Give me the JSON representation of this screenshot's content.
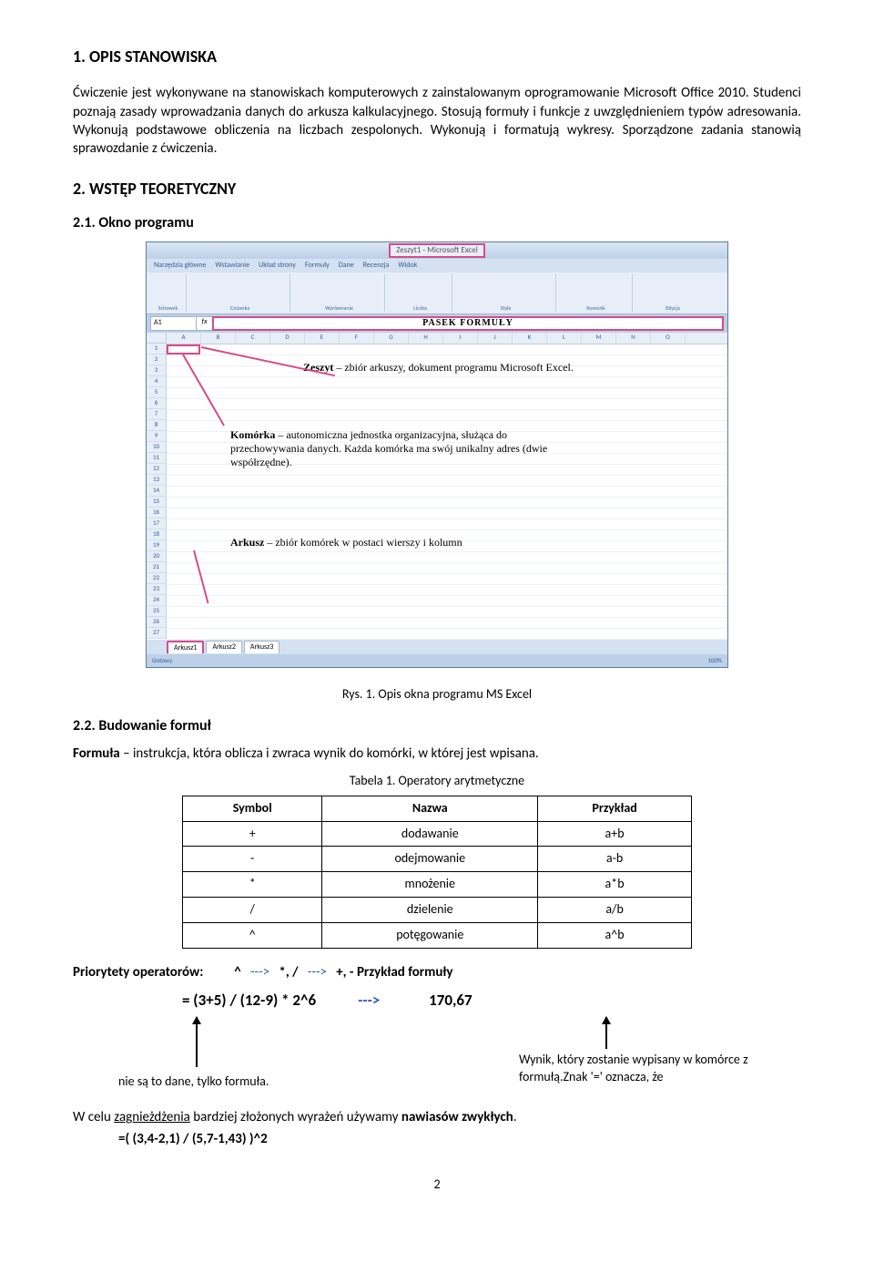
{
  "h1": "1. OPIS STANOWISKA",
  "p1": "Ćwiczenie jest wykonywane na stanowiskach komputerowych z zainstalowanym oprogramowanie Microsoft Office 2010. Studenci poznają zasady wprowadzania danych do arkusza kalkulacyjnego. Stosują formuły i funkcje z uwzględnieniem typów adresowania. Wykonują podstawowe obliczenia na liczbach zespolonych. Wykonują i formatują wykresy. Sporządzone zadania stanowią sprawozdanie z ćwiczenia.",
  "h2": "2. WSTĘP TEORETYCZNY",
  "h3a": "2.1. Okno programu",
  "excel": {
    "title": "Zeszyt1 - Microsoft Excel",
    "tabs": [
      "Narzędzia główne",
      "Wstawianie",
      "Układ strony",
      "Formuły",
      "Dane",
      "Recenzja",
      "Widok"
    ],
    "rib_groups": [
      "Schowek",
      "Czcionka",
      "Wyrównanie",
      "Liczba",
      "Style",
      "Komórki",
      "Edycja"
    ],
    "name_box": "A1",
    "formula_label": "PASEK  FORMUŁY",
    "cols": [
      "A",
      "B",
      "C",
      "D",
      "E",
      "F",
      "G",
      "H",
      "I",
      "J",
      "K",
      "L",
      "M",
      "N",
      "O"
    ],
    "rows": 27,
    "annot_zeszyt": "Zeszyt – zbiór arkuszy, dokument programu Microsoft Excel.",
    "annot_zeszyt_b": "Zeszyt",
    "annot_komorka_b": "Komórka",
    "annot_komorka": " – autonomiczna jednostka organizacyjna, służąca  do  przechowywania danych. Każda komórka ma swój unikalny adres (dwie współrzędne).",
    "annot_arkusz_b": "Arkusz",
    "annot_arkusz": " – zbiór komórek w postaci  wierszy i kolumn",
    "sheet_tabs": [
      "Arkusz1",
      "Arkusz2",
      "Arkusz3"
    ],
    "status_left": "Gotowy",
    "status_right": "100%"
  },
  "fig_caption": "Rys. 1. Opis okna programu MS Excel",
  "h3b": "2.2. Budowanie formuł",
  "p_formula": "Formuła – instrukcja, która oblicza i zwraca wynik do komórki, w której jest wpisana.",
  "formula_b": "Formuła",
  "table_caption": "Tabela 1. Operatory arytmetyczne",
  "table": {
    "headers": [
      "Symbol",
      "Nazwa",
      "Przykład"
    ],
    "rows": [
      [
        "+",
        "dodawanie",
        "a+b"
      ],
      [
        "-",
        "odejmowanie",
        "a-b"
      ],
      [
        "*",
        "mnożenie",
        "a*b"
      ],
      [
        "/",
        "dzielenie",
        "a/b"
      ],
      [
        "^",
        "potęgowanie",
        "a^b"
      ]
    ]
  },
  "prio_label": "Priorytety operatorów:",
  "prio_chain_1": "^",
  "prio_arrow": "--->",
  "prio_chain_2": "*, /",
  "prio_chain_3": "+, -",
  "prio_example_label": "Przykład formuły",
  "formula_eq": "= (3+5) / (12-9) * 2^6",
  "formula_result": "170,67",
  "note_left": "nie są to dane, tylko formuła.",
  "note_right": "Wynik, który zostanie wypisany w komórce z formułą.Znak '=' oznacza, że",
  "nested_p": "W celu zagnieżdżenia bardziej złożonych wyrażeń używamy nawiasów zwykłych.",
  "nested_u": "zagnieżdżenia",
  "nested_b": "nawiasów zwykłych",
  "nested_formula": "=( (3,4-2,1) / (5,7-1,43) )^2",
  "page_num": "2"
}
